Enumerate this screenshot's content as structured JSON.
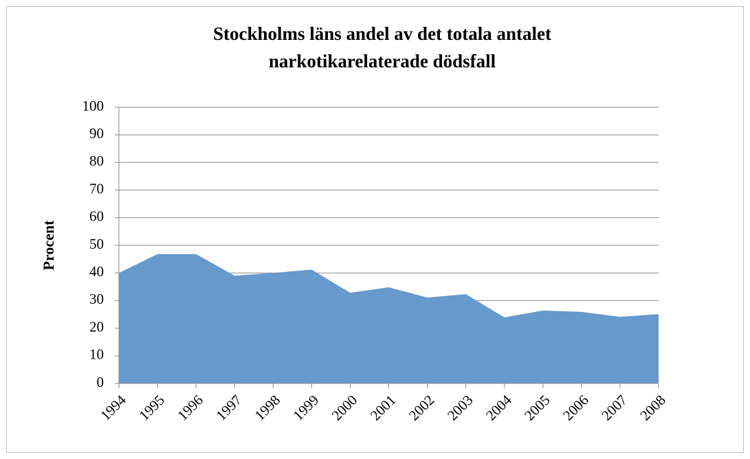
{
  "chart_data": {
    "type": "area",
    "title": [
      "Stockholms läns andel av det totala antalet",
      "narkotikarelaterade dödsfall"
    ],
    "y_label": "Procent",
    "categories": [
      "1994",
      "1995",
      "1996",
      "1997",
      "1998",
      "1999",
      "2000",
      "2001",
      "2002",
      "2003",
      "2004",
      "2005",
      "2006",
      "2007",
      "2008"
    ],
    "values": [
      40,
      46.8,
      46.8,
      39,
      40,
      41.2,
      32.8,
      34.8,
      31.1,
      32.3,
      23.9,
      26.4,
      25.9,
      24.1,
      25.1
    ],
    "color": "#6699cc",
    "ylim": [
      0,
      100
    ],
    "yticks": [
      0,
      10,
      20,
      30,
      40,
      50,
      60,
      70,
      80,
      90,
      100
    ],
    "grid": true
  }
}
